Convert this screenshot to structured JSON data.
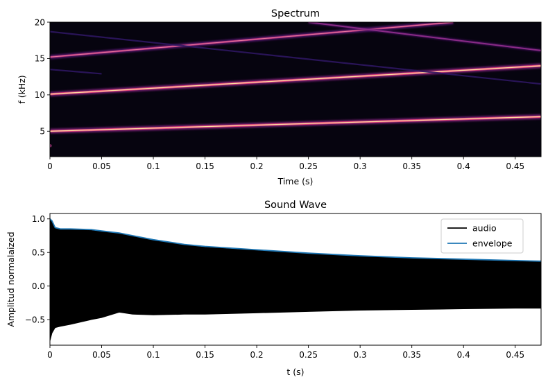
{
  "colors": {
    "spectrogram_background": "#06040f",
    "audio": "#000000",
    "envelope": "#1f77b4",
    "legend_border": "#cccccc"
  },
  "chart_data": [
    {
      "type": "heatmap",
      "title": "Spectrum",
      "xlabel": "Time (s)",
      "ylabel": "f (kHz)",
      "xlim": [
        0,
        0.475
      ],
      "ylim": [
        1.5,
        20
      ],
      "xticks": [
        0,
        0.05,
        0.1,
        0.15,
        0.2,
        0.25,
        0.3,
        0.35,
        0.4,
        0.45
      ],
      "xtick_labels": [
        "0",
        "0.05",
        "0.1",
        "0.15",
        "0.2",
        "0.25",
        "0.3",
        "0.35",
        "0.4",
        "0.45"
      ],
      "yticks": [
        5,
        10,
        15,
        20
      ],
      "ytick_labels": [
        "5",
        "10",
        "15",
        "20"
      ],
      "colormap": "magma",
      "grid": false,
      "harmonics": [
        {
          "name": "fundamental",
          "t": [
            0,
            0.475
          ],
          "f": [
            5.0,
            7.0
          ],
          "intensity": 1.0
        },
        {
          "name": "harmonic-2",
          "t": [
            0,
            0.475
          ],
          "f": [
            10.1,
            14.0
          ],
          "intensity": 0.85
        },
        {
          "name": "harmonic-3",
          "t": [
            0,
            0.39
          ],
          "f": [
            15.2,
            20.0
          ],
          "intensity": 0.55
        },
        {
          "name": "alias-falling",
          "t": [
            0.25,
            0.475
          ],
          "f": [
            20.0,
            16.1
          ],
          "intensity": 0.45
        },
        {
          "name": "faint-1",
          "t": [
            0,
            0.475
          ],
          "f": [
            18.7,
            11.5
          ],
          "intensity": 0.2
        },
        {
          "name": "faint-2",
          "t": [
            0,
            0.05
          ],
          "f": [
            13.5,
            12.9
          ],
          "intensity": 0.12
        }
      ]
    },
    {
      "type": "area",
      "title": "Sound Wave",
      "xlabel": "t (s)",
      "ylabel": "Amplitud normalaized",
      "xlim": [
        0,
        0.475
      ],
      "ylim": [
        -0.88,
        1.08
      ],
      "xticks": [
        0,
        0.05,
        0.1,
        0.15,
        0.2,
        0.25,
        0.3,
        0.35,
        0.4,
        0.45
      ],
      "xtick_labels": [
        "0",
        "0.05",
        "0.1",
        "0.15",
        "0.2",
        "0.25",
        "0.3",
        "0.35",
        "0.4",
        "0.45"
      ],
      "yticks": [
        1.0,
        0.5,
        0.0,
        -0.5
      ],
      "ytick_labels": [
        "1.0",
        "0.5",
        "0.0",
        "−0.5"
      ],
      "grid": false,
      "legend_position": "top-right",
      "series": [
        {
          "name": "audio",
          "t": [
            0,
            0.002,
            0.005,
            0.01,
            0.02,
            0.04,
            0.05,
            0.067,
            0.08,
            0.1,
            0.13,
            0.15,
            0.2,
            0.25,
            0.3,
            0.35,
            0.4,
            0.45,
            0.475
          ],
          "upper": [
            1.0,
            0.97,
            0.86,
            0.84,
            0.84,
            0.83,
            0.81,
            0.78,
            0.74,
            0.68,
            0.61,
            0.58,
            0.53,
            0.48,
            0.44,
            0.41,
            0.39,
            0.37,
            0.36
          ],
          "lower": [
            -0.82,
            -0.7,
            -0.62,
            -0.6,
            -0.57,
            -0.5,
            -0.47,
            -0.39,
            -0.42,
            -0.43,
            -0.42,
            -0.42,
            -0.4,
            -0.38,
            -0.36,
            -0.35,
            -0.34,
            -0.33,
            -0.33
          ]
        },
        {
          "name": "envelope",
          "t": [
            0,
            0.002,
            0.005,
            0.01,
            0.02,
            0.04,
            0.05,
            0.067,
            0.08,
            0.1,
            0.13,
            0.15,
            0.2,
            0.25,
            0.3,
            0.35,
            0.4,
            0.45,
            0.475
          ],
          "values": [
            1.0,
            0.97,
            0.87,
            0.85,
            0.85,
            0.84,
            0.82,
            0.79,
            0.75,
            0.69,
            0.62,
            0.59,
            0.54,
            0.49,
            0.45,
            0.42,
            0.4,
            0.38,
            0.37
          ]
        }
      ]
    }
  ]
}
